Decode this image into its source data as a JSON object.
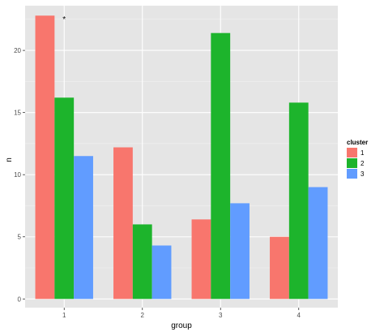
{
  "chart_data": {
    "type": "bar",
    "categories": [
      "1",
      "2",
      "3",
      "4"
    ],
    "series": [
      {
        "name": "1",
        "color": "#F8766D",
        "values": [
          22.8,
          12.2,
          6.4,
          5.0
        ]
      },
      {
        "name": "2",
        "color": "#1DB42C",
        "values": [
          16.2,
          6.0,
          21.4,
          15.8
        ]
      },
      {
        "name": "3",
        "color": "#619CFF",
        "values": [
          11.5,
          4.3,
          7.7,
          9.0
        ]
      }
    ],
    "y_ticks": [
      "0",
      "5",
      "10",
      "15",
      "20"
    ],
    "xlabel": "group",
    "ylabel": "n",
    "ylim": [
      -0.7,
      23.6
    ],
    "grid": true,
    "legend": {
      "title": "cluster",
      "position": "right"
    },
    "annotation": {
      "text": "*",
      "category": "1"
    }
  },
  "colors": {
    "panel_background": "#E5E5E5",
    "grid_major": "#FFFFFF",
    "grid_minor": "#F2F2F2",
    "tick_text": "#4D4D4D"
  }
}
